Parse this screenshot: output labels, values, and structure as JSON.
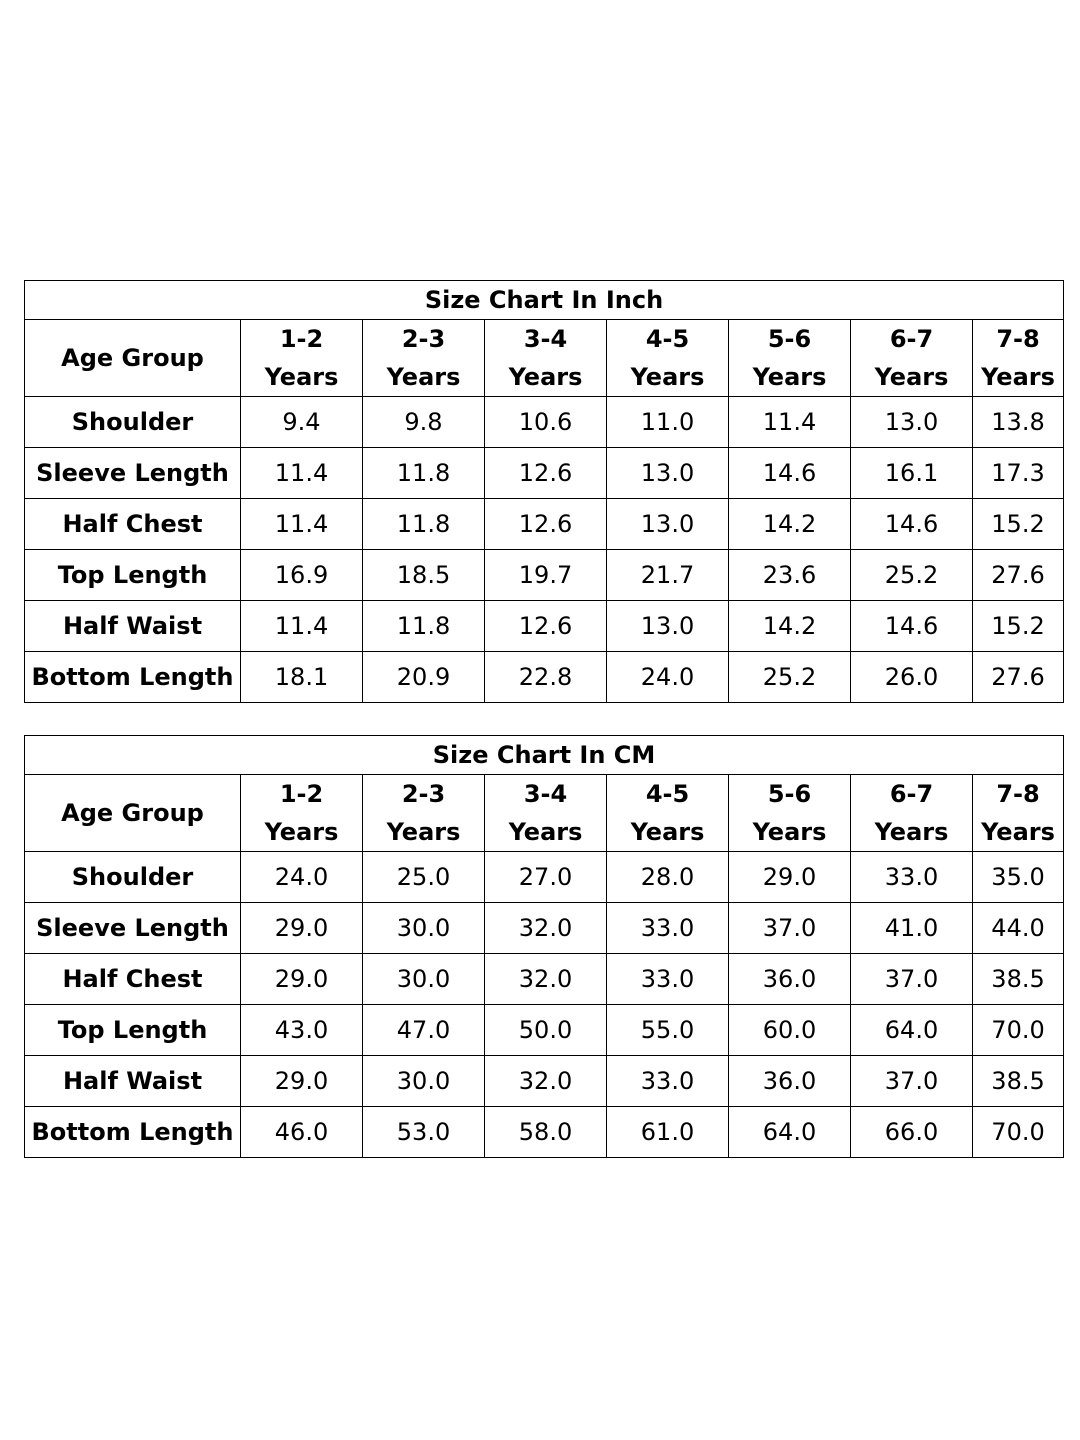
{
  "age_groups": [
    {
      "range": "1-2",
      "unit": "Years"
    },
    {
      "range": "2-3",
      "unit": "Years"
    },
    {
      "range": "3-4",
      "unit": "Years"
    },
    {
      "range": "4-5",
      "unit": "Years"
    },
    {
      "range": "5-6",
      "unit": "Years"
    },
    {
      "range": "6-7",
      "unit": "Years"
    },
    {
      "range": "7-8",
      "unit": "Years"
    }
  ],
  "tables": [
    {
      "id": "inch",
      "title": "Size Chart In Inch",
      "header_label": "Age Group",
      "rows": [
        {
          "label": "Shoulder",
          "values": [
            "9.4",
            "9.8",
            "10.6",
            "11.0",
            "11.4",
            "13.0",
            "13.8"
          ]
        },
        {
          "label": "Sleeve Length",
          "values": [
            "11.4",
            "11.8",
            "12.6",
            "13.0",
            "14.6",
            "16.1",
            "17.3"
          ]
        },
        {
          "label": "Half Chest",
          "values": [
            "11.4",
            "11.8",
            "12.6",
            "13.0",
            "14.2",
            "14.6",
            "15.2"
          ]
        },
        {
          "label": "Top Length",
          "values": [
            "16.9",
            "18.5",
            "19.7",
            "21.7",
            "23.6",
            "25.2",
            "27.6"
          ]
        },
        {
          "label": "Half Waist",
          "values": [
            "11.4",
            "11.8",
            "12.6",
            "13.0",
            "14.2",
            "14.6",
            "15.2"
          ]
        },
        {
          "label": "Bottom Length",
          "values": [
            "18.1",
            "20.9",
            "22.8",
            "24.0",
            "25.2",
            "26.0",
            "27.6"
          ]
        }
      ]
    },
    {
      "id": "cm",
      "title": "Size Chart In CM",
      "header_label": "Age Group",
      "rows": [
        {
          "label": "Shoulder",
          "values": [
            "24.0",
            "25.0",
            "27.0",
            "28.0",
            "29.0",
            "33.0",
            "35.0"
          ]
        },
        {
          "label": "Sleeve Length",
          "values": [
            "29.0",
            "30.0",
            "32.0",
            "33.0",
            "37.0",
            "41.0",
            "44.0"
          ]
        },
        {
          "label": "Half Chest",
          "values": [
            "29.0",
            "30.0",
            "32.0",
            "33.0",
            "36.0",
            "37.0",
            "38.5"
          ]
        },
        {
          "label": "Top Length",
          "values": [
            "43.0",
            "47.0",
            "50.0",
            "55.0",
            "60.0",
            "64.0",
            "70.0"
          ]
        },
        {
          "label": "Half Waist",
          "values": [
            "29.0",
            "30.0",
            "32.0",
            "33.0",
            "36.0",
            "37.0",
            "38.5"
          ]
        },
        {
          "label": "Bottom Length",
          "values": [
            "46.0",
            "53.0",
            "58.0",
            "61.0",
            "64.0",
            "66.0",
            "70.0"
          ]
        }
      ]
    }
  ]
}
